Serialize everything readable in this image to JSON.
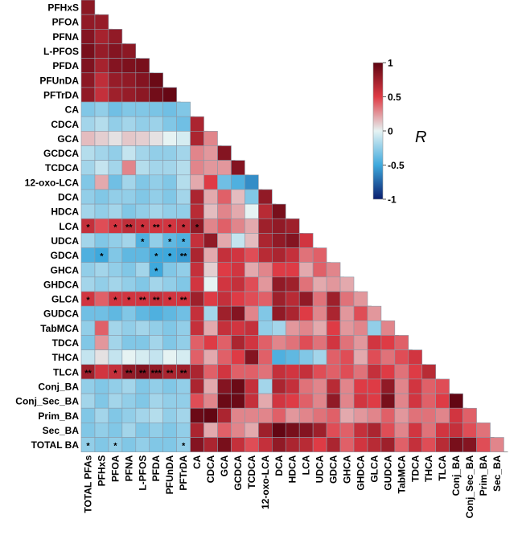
{
  "chart_data": {
    "type": "heatmap",
    "shape": "lower-triangle correlation matrix",
    "variables": [
      "PFHxS",
      "PFOA",
      "PFNA",
      "L-PFOS",
      "PFDA",
      "PFUnDA",
      "PFTrDA",
      "CA",
      "CDCA",
      "GCA",
      "GCDCA",
      "TCDCA",
      "12-oxo-LCA",
      "DCA",
      "HDCA",
      "LCA",
      "UDCA",
      "GDCA",
      "GHCA",
      "GHDCA",
      "GLCA",
      "GUDCA",
      "TabMCA",
      "TDCA",
      "THCA",
      "TLCA",
      "Conj_BA",
      "Conj_Sec_BA",
      "Prim_BA",
      "Sec_BA",
      "TOTAL BA"
    ],
    "column_variables": [
      "TOTAL PFAs",
      "PFHxS",
      "PFOA",
      "PFNA",
      "L-PFOS",
      "PFDA",
      "PFUnDA",
      "PFTrDA",
      "CA",
      "CDCA",
      "GCA",
      "GCDCA",
      "TCDCA",
      "12-oxo-LCA",
      "DCA",
      "HDCA",
      "LCA",
      "UDCA",
      "GDCA",
      "GHCA",
      "GHDCA",
      "GLCA",
      "GUDCA",
      "TabMCA",
      "TDCA",
      "THCA",
      "TLCA",
      "Conj_BA",
      "Conj_Sec_BA",
      "Prim_BA",
      "Sec_BA"
    ],
    "values": [
      [
        0.82
      ],
      [
        0.8,
        0.78
      ],
      [
        0.85,
        0.72,
        0.8
      ],
      [
        0.9,
        0.78,
        0.85,
        0.82
      ],
      [
        0.87,
        0.72,
        0.85,
        0.88,
        0.9
      ],
      [
        0.82,
        0.62,
        0.78,
        0.8,
        0.85,
        0.95
      ],
      [
        0.8,
        0.6,
        0.75,
        0.78,
        0.82,
        0.92,
        0.97
      ],
      [
        -0.3,
        -0.25,
        -0.35,
        -0.3,
        -0.3,
        -0.32,
        -0.35,
        -0.3
      ],
      [
        -0.2,
        -0.15,
        -0.25,
        -0.2,
        -0.25,
        -0.22,
        -0.3,
        -0.35,
        0.7
      ],
      [
        0.15,
        0.1,
        0.05,
        0.12,
        0.1,
        0.05,
        0.0,
        -0.05,
        0.7,
        0.3
      ],
      [
        -0.15,
        -0.2,
        -0.25,
        -0.1,
        -0.2,
        -0.25,
        -0.25,
        -0.2,
        0.3,
        0.25,
        0.85
      ],
      [
        -0.2,
        -0.1,
        -0.2,
        0.3,
        -0.15,
        -0.2,
        -0.2,
        -0.15,
        0.3,
        0.25,
        0.25,
        0.85
      ],
      [
        -0.3,
        0.2,
        -0.35,
        -0.2,
        -0.3,
        -0.25,
        -0.3,
        -0.15,
        0.2,
        0.5,
        -0.35,
        -0.45,
        -0.6
      ],
      [
        -0.25,
        -0.3,
        -0.25,
        -0.25,
        -0.3,
        -0.25,
        -0.3,
        -0.2,
        0.7,
        0.2,
        0.4,
        0.15,
        -0.3,
        0.8
      ],
      [
        -0.2,
        -0.25,
        -0.2,
        -0.3,
        -0.25,
        -0.2,
        -0.25,
        -0.25,
        0.65,
        0.15,
        0.3,
        0.2,
        0.0,
        0.65,
        0.9
      ],
      [
        0.6,
        0.45,
        0.55,
        0.62,
        0.58,
        0.55,
        0.55,
        0.6,
        0.8,
        0.3,
        0.4,
        0.3,
        0.2,
        0.75,
        0.8,
        0.75
      ],
      [
        -0.2,
        -0.3,
        -0.25,
        -0.2,
        -0.45,
        -0.25,
        -0.4,
        -0.45,
        0.6,
        0.8,
        0.2,
        -0.1,
        0.15,
        0.7,
        0.8,
        0.85,
        0.55
      ],
      [
        -0.45,
        -0.5,
        -0.3,
        -0.4,
        -0.4,
        -0.5,
        -0.5,
        -0.55,
        0.7,
        0.2,
        0.6,
        0.55,
        0.45,
        0.65,
        0.7,
        0.6,
        0.35,
        0.4
      ],
      [
        -0.25,
        -0.2,
        -0.25,
        -0.3,
        -0.2,
        -0.5,
        -0.3,
        -0.25,
        0.6,
        0.1,
        0.5,
        0.55,
        0.2,
        0.3,
        0.5,
        0.5,
        0.2,
        0.4,
        0.3
      ],
      [
        -0.2,
        -0.25,
        -0.2,
        -0.25,
        -0.3,
        -0.2,
        -0.25,
        -0.3,
        0.55,
        0.0,
        0.55,
        0.6,
        0.45,
        0.25,
        0.8,
        0.75,
        0.35,
        0.2,
        0.25,
        0.2
      ],
      [
        0.55,
        0.4,
        0.55,
        0.55,
        0.55,
        0.6,
        0.55,
        0.55,
        0.75,
        0.5,
        0.6,
        0.5,
        0.45,
        0.4,
        0.75,
        0.65,
        0.8,
        0.35,
        0.75,
        0.35,
        0.25
      ],
      [
        -0.35,
        -0.35,
        -0.4,
        -0.3,
        -0.4,
        -0.45,
        -0.4,
        -0.35,
        0.6,
        -0.2,
        0.75,
        0.85,
        0.3,
        -0.3,
        0.8,
        0.7,
        0.5,
        0.3,
        0.7,
        0.25,
        0.45,
        0.25
      ],
      [
        -0.25,
        0.4,
        -0.2,
        -0.25,
        -0.2,
        -0.25,
        -0.3,
        -0.25,
        0.6,
        0.2,
        0.6,
        0.55,
        0.6,
        -0.25,
        -0.2,
        0.25,
        0.3,
        0.2,
        0.5,
        0.25,
        0.3,
        -0.25,
        0.3
      ],
      [
        -0.3,
        0.25,
        -0.2,
        -0.3,
        -0.3,
        -0.2,
        -0.3,
        -0.25,
        0.4,
        0.5,
        0.4,
        0.7,
        0.55,
        0.4,
        0.3,
        0.35,
        0.45,
        0.35,
        0.55,
        0.35,
        0.25,
        0.55,
        0.5,
        0.4
      ],
      [
        -0.1,
        0.05,
        -0.1,
        0.0,
        -0.05,
        -0.1,
        0.0,
        -0.05,
        0.4,
        0.2,
        0.4,
        0.5,
        0.85,
        0.4,
        -0.45,
        -0.4,
        -0.3,
        -0.2,
        0.4,
        0.45,
        0.2,
        0.45,
        0.35,
        0.45,
        0.55
      ],
      [
        0.75,
        0.55,
        0.6,
        0.8,
        0.85,
        0.8,
        0.7,
        0.75,
        0.7,
        0.4,
        0.55,
        0.4,
        0.4,
        0.35,
        0.6,
        0.55,
        0.6,
        0.45,
        0.4,
        0.45,
        0.35,
        0.6,
        0.5,
        0.35,
        0.5,
        0.65
      ],
      [
        -0.25,
        -0.3,
        -0.25,
        -0.2,
        -0.3,
        -0.25,
        -0.3,
        -0.25,
        0.7,
        0.2,
        0.85,
        0.95,
        0.6,
        -0.2,
        0.7,
        0.6,
        0.35,
        0.3,
        0.65,
        0.3,
        0.5,
        0.5,
        0.8,
        0.3,
        0.55,
        0.4,
        0.45
      ],
      [
        -0.2,
        -0.3,
        -0.2,
        -0.25,
        -0.3,
        -0.2,
        -0.25,
        -0.25,
        0.45,
        0.3,
        0.95,
        0.95,
        0.6,
        0.2,
        0.55,
        0.5,
        0.4,
        0.3,
        0.8,
        0.3,
        0.55,
        0.5,
        0.9,
        0.3,
        0.55,
        0.4,
        0.5,
        0.98
      ],
      [
        -0.3,
        -0.2,
        -0.3,
        -0.25,
        -0.2,
        -0.15,
        -0.25,
        -0.2,
        0.95,
        0.98,
        0.7,
        0.3,
        0.3,
        0.3,
        0.4,
        0.25,
        0.3,
        0.35,
        0.4,
        0.2,
        0.25,
        0.3,
        0.4,
        0.25,
        0.35,
        0.35,
        0.3,
        0.55,
        0.4
      ],
      [
        -0.3,
        -0.25,
        -0.3,
        -0.2,
        -0.3,
        -0.25,
        -0.3,
        -0.25,
        0.7,
        0.2,
        0.4,
        0.3,
        0.2,
        0.75,
        0.98,
        0.9,
        0.85,
        0.75,
        0.45,
        0.4,
        0.6,
        0.7,
        0.45,
        0.3,
        0.55,
        0.35,
        0.55,
        0.6,
        0.45,
        0.35
      ],
      [
        -0.25,
        -0.3,
        -0.25,
        -0.3,
        -0.25,
        -0.3,
        -0.3,
        -0.25,
        0.85,
        0.7,
        0.9,
        0.6,
        0.45,
        0.6,
        0.8,
        0.7,
        0.65,
        0.5,
        0.7,
        0.4,
        0.55,
        0.65,
        0.75,
        0.4,
        0.6,
        0.45,
        0.65,
        0.9,
        0.85,
        0.45,
        0.3
      ]
    ],
    "significance": [
      {
        "row": 15,
        "col": 0,
        "mark": "*"
      },
      {
        "row": 15,
        "col": 2,
        "mark": "*"
      },
      {
        "row": 15,
        "col": 3,
        "mark": "**"
      },
      {
        "row": 15,
        "col": 4,
        "mark": "*"
      },
      {
        "row": 15,
        "col": 5,
        "mark": "**"
      },
      {
        "row": 15,
        "col": 6,
        "mark": "*"
      },
      {
        "row": 15,
        "col": 7,
        "mark": "*"
      },
      {
        "row": 15,
        "col": 8,
        "mark": "*"
      },
      {
        "row": 16,
        "col": 4,
        "mark": "*"
      },
      {
        "row": 16,
        "col": 6,
        "mark": "*"
      },
      {
        "row": 16,
        "col": 7,
        "mark": "*"
      },
      {
        "row": 17,
        "col": 1,
        "mark": "*"
      },
      {
        "row": 17,
        "col": 5,
        "mark": "*"
      },
      {
        "row": 17,
        "col": 6,
        "mark": "*"
      },
      {
        "row": 17,
        "col": 7,
        "mark": "**"
      },
      {
        "row": 18,
        "col": 5,
        "mark": "*"
      },
      {
        "row": 20,
        "col": 0,
        "mark": "*"
      },
      {
        "row": 20,
        "col": 2,
        "mark": "*"
      },
      {
        "row": 20,
        "col": 3,
        "mark": "*"
      },
      {
        "row": 20,
        "col": 4,
        "mark": "**"
      },
      {
        "row": 20,
        "col": 5,
        "mark": "**"
      },
      {
        "row": 20,
        "col": 6,
        "mark": "*"
      },
      {
        "row": 20,
        "col": 7,
        "mark": "**"
      },
      {
        "row": 25,
        "col": 0,
        "mark": "**"
      },
      {
        "row": 25,
        "col": 2,
        "mark": "*"
      },
      {
        "row": 25,
        "col": 3,
        "mark": "**"
      },
      {
        "row": 25,
        "col": 4,
        "mark": "**"
      },
      {
        "row": 25,
        "col": 5,
        "mark": "***"
      },
      {
        "row": 25,
        "col": 6,
        "mark": "**"
      },
      {
        "row": 25,
        "col": 7,
        "mark": "**"
      },
      {
        "row": 30,
        "col": 0,
        "mark": "*"
      },
      {
        "row": 30,
        "col": 2,
        "mark": "*"
      },
      {
        "row": 30,
        "col": 7,
        "mark": "*"
      }
    ],
    "colorbar": {
      "label": "R",
      "range": [
        -1,
        1
      ],
      "ticks": [
        1,
        0.5,
        0,
        -0.5,
        -1
      ],
      "tick_labels": [
        "1",
        "0.5",
        "0",
        "-0.5",
        "-1"
      ],
      "colors": [
        "#0a1e6e",
        "#3ea9dd",
        "#e6f3f3",
        "#de3b45",
        "#5e0411"
      ]
    }
  }
}
